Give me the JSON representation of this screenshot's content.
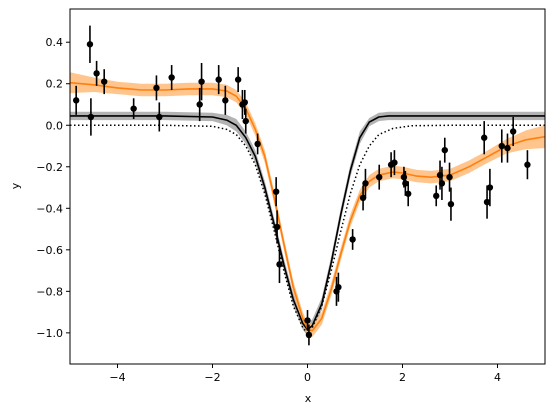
{
  "chart_data": {
    "type": "scatter",
    "title": "",
    "xlabel": "x",
    "ylabel": "y",
    "xlim": [
      -5,
      5
    ],
    "ylim": [
      -1.15,
      0.56
    ],
    "grid": false,
    "legend": "none",
    "x_ticks": [
      -4,
      -2,
      0,
      2,
      4
    ],
    "x_tick_labels": [
      "−4",
      "−2",
      "0",
      "2",
      "4"
    ],
    "y_ticks": [
      -1.0,
      -0.8,
      -0.6,
      -0.4,
      -0.2,
      0.0,
      0.2,
      0.4
    ],
    "y_tick_labels": [
      "−1.0",
      "−0.8",
      "−0.6",
      "−0.4",
      "−0.2",
      "0.0",
      "0.2",
      "0.4"
    ],
    "colors": {
      "observations": "#000000",
      "orange_mean": "#ff7f0e",
      "orange_band": "#ffbb78",
      "black_mean": "#000000",
      "black_band": "#999999"
    },
    "observations": [
      {
        "x": -4.87,
        "y": 0.12,
        "err": 0.07
      },
      {
        "x": -4.58,
        "y": 0.39,
        "err": 0.09
      },
      {
        "x": -4.56,
        "y": 0.04,
        "err": 0.09
      },
      {
        "x": -4.44,
        "y": 0.25,
        "err": 0.06
      },
      {
        "x": -4.28,
        "y": 0.21,
        "err": 0.06
      },
      {
        "x": -3.66,
        "y": 0.08,
        "err": 0.05
      },
      {
        "x": -3.18,
        "y": 0.18,
        "err": 0.06
      },
      {
        "x": -3.12,
        "y": 0.04,
        "err": 0.07
      },
      {
        "x": -2.86,
        "y": 0.23,
        "err": 0.06
      },
      {
        "x": -2.27,
        "y": 0.1,
        "err": 0.08
      },
      {
        "x": -2.23,
        "y": 0.21,
        "err": 0.09
      },
      {
        "x": -1.87,
        "y": 0.22,
        "err": 0.07
      },
      {
        "x": -1.73,
        "y": 0.12,
        "err": 0.07
      },
      {
        "x": -1.46,
        "y": 0.22,
        "err": 0.06
      },
      {
        "x": -1.37,
        "y": 0.1,
        "err": 0.07
      },
      {
        "x": -1.32,
        "y": 0.11,
        "err": 0.06
      },
      {
        "x": -1.3,
        "y": 0.02,
        "err": 0.06
      },
      {
        "x": -1.05,
        "y": -0.09,
        "err": 0.05
      },
      {
        "x": -0.66,
        "y": -0.32,
        "err": 0.07
      },
      {
        "x": -0.64,
        "y": -0.49,
        "err": 0.08
      },
      {
        "x": -0.59,
        "y": -0.67,
        "err": 0.09
      },
      {
        "x": 0.0,
        "y": -0.94,
        "err": 0.05
      },
      {
        "x": 0.03,
        "y": -1.01,
        "err": 0.05
      },
      {
        "x": 0.61,
        "y": -0.8,
        "err": 0.07
      },
      {
        "x": 0.65,
        "y": -0.78,
        "err": 0.07
      },
      {
        "x": 0.95,
        "y": -0.55,
        "err": 0.05
      },
      {
        "x": 1.17,
        "y": -0.35,
        "err": 0.06
      },
      {
        "x": 1.22,
        "y": -0.28,
        "err": 0.07
      },
      {
        "x": 1.51,
        "y": -0.25,
        "err": 0.06
      },
      {
        "x": 1.76,
        "y": -0.19,
        "err": 0.06
      },
      {
        "x": 1.83,
        "y": -0.18,
        "err": 0.06
      },
      {
        "x": 2.03,
        "y": -0.25,
        "err": 0.05
      },
      {
        "x": 2.06,
        "y": -0.28,
        "err": 0.06
      },
      {
        "x": 2.12,
        "y": -0.33,
        "err": 0.06
      },
      {
        "x": 2.71,
        "y": -0.34,
        "err": 0.05
      },
      {
        "x": 2.79,
        "y": -0.24,
        "err": 0.07
      },
      {
        "x": 2.83,
        "y": -0.28,
        "err": 0.08
      },
      {
        "x": 2.89,
        "y": -0.12,
        "err": 0.06
      },
      {
        "x": 2.99,
        "y": -0.25,
        "err": 0.07
      },
      {
        "x": 3.02,
        "y": -0.38,
        "err": 0.08
      },
      {
        "x": 3.72,
        "y": -0.06,
        "err": 0.08
      },
      {
        "x": 3.78,
        "y": -0.37,
        "err": 0.08
      },
      {
        "x": 3.84,
        "y": -0.3,
        "err": 0.09
      },
      {
        "x": 4.09,
        "y": -0.1,
        "err": 0.08
      },
      {
        "x": 4.21,
        "y": -0.11,
        "err": 0.07
      },
      {
        "x": 4.33,
        "y": -0.03,
        "err": 0.07
      },
      {
        "x": 4.63,
        "y": -0.19,
        "err": 0.07
      }
    ],
    "orange_fit": {
      "x": [
        -5.0,
        -4.5,
        -4.0,
        -3.5,
        -3.0,
        -2.5,
        -2.0,
        -1.7,
        -1.5,
        -1.3,
        -1.1,
        -0.9,
        -0.7,
        -0.5,
        -0.3,
        -0.1,
        0.0,
        0.1,
        0.3,
        0.5,
        0.7,
        0.9,
        1.1,
        1.3,
        1.5,
        1.8,
        2.0,
        2.3,
        2.6,
        3.0,
        3.4,
        3.8,
        4.2,
        4.6,
        5.0
      ],
      "y": [
        0.205,
        0.195,
        0.18,
        0.17,
        0.17,
        0.175,
        0.175,
        0.165,
        0.14,
        0.08,
        -0.02,
        -0.15,
        -0.35,
        -0.57,
        -0.78,
        -0.93,
        -0.98,
        -0.99,
        -0.93,
        -0.79,
        -0.62,
        -0.46,
        -0.34,
        -0.27,
        -0.24,
        -0.225,
        -0.23,
        -0.245,
        -0.25,
        -0.24,
        -0.2,
        -0.15,
        -0.1,
        -0.07,
        -0.055
      ],
      "lower": [
        0.155,
        0.16,
        0.15,
        0.14,
        0.14,
        0.145,
        0.145,
        0.135,
        0.11,
        0.05,
        -0.05,
        -0.18,
        -0.38,
        -0.6,
        -0.81,
        -0.96,
        -1.01,
        -1.02,
        -0.96,
        -0.82,
        -0.65,
        -0.49,
        -0.37,
        -0.3,
        -0.27,
        -0.255,
        -0.26,
        -0.275,
        -0.28,
        -0.27,
        -0.23,
        -0.18,
        -0.135,
        -0.115,
        -0.11
      ],
      "upper": [
        0.255,
        0.23,
        0.21,
        0.2,
        0.2,
        0.205,
        0.205,
        0.195,
        0.17,
        0.11,
        0.01,
        -0.12,
        -0.32,
        -0.54,
        -0.75,
        -0.9,
        -0.95,
        -0.96,
        -0.9,
        -0.76,
        -0.59,
        -0.43,
        -0.31,
        -0.24,
        -0.21,
        -0.195,
        -0.2,
        -0.215,
        -0.22,
        -0.21,
        -0.17,
        -0.12,
        -0.065,
        -0.025,
        0.0
      ]
    },
    "black_fit": {
      "x": [
        -5.0,
        -3.0,
        -2.0,
        -1.7,
        -1.5,
        -1.3,
        -1.1,
        -0.9,
        -0.7,
        -0.5,
        -0.3,
        -0.1,
        0.0,
        0.1,
        0.3,
        0.5,
        0.7,
        0.9,
        1.1,
        1.3,
        1.5,
        1.7,
        2.0,
        2.5,
        3.0,
        4.0,
        5.0
      ],
      "y": [
        0.045,
        0.045,
        0.04,
        0.025,
        0.0,
        -0.06,
        -0.15,
        -0.3,
        -0.48,
        -0.67,
        -0.84,
        -0.955,
        -0.985,
        -0.965,
        -0.86,
        -0.66,
        -0.43,
        -0.22,
        -0.06,
        0.015,
        0.04,
        0.045,
        0.045,
        0.045,
        0.045,
        0.045,
        0.045
      ],
      "lower": [
        0.025,
        0.025,
        0.02,
        0.0,
        -0.03,
        -0.09,
        -0.18,
        -0.33,
        -0.51,
        -0.7,
        -0.87,
        -0.985,
        -1.015,
        -0.995,
        -0.89,
        -0.69,
        -0.46,
        -0.25,
        -0.09,
        -0.005,
        0.02,
        0.025,
        0.025,
        0.025,
        0.025,
        0.025,
        0.025
      ],
      "upper": [
        0.065,
        0.065,
        0.06,
        0.05,
        0.03,
        -0.03,
        -0.12,
        -0.27,
        -0.45,
        -0.64,
        -0.81,
        -0.925,
        -0.955,
        -0.935,
        -0.83,
        -0.63,
        -0.4,
        -0.19,
        -0.03,
        0.035,
        0.06,
        0.065,
        0.065,
        0.065,
        0.065,
        0.065,
        0.065
      ]
    },
    "truth_dotted": {
      "x": [
        -5.0,
        -3.0,
        -2.0,
        -1.7,
        -1.5,
        -1.3,
        -1.1,
        -0.9,
        -0.7,
        -0.5,
        -0.3,
        -0.1,
        0.0,
        0.1,
        0.3,
        0.5,
        0.7,
        0.9,
        1.1,
        1.3,
        1.5,
        1.8,
        2.2,
        3.0,
        5.0
      ],
      "y": [
        0.0,
        0.0,
        -0.005,
        -0.02,
        -0.045,
        -0.1,
        -0.19,
        -0.33,
        -0.51,
        -0.7,
        -0.87,
        -0.975,
        -1.0,
        -0.975,
        -0.87,
        -0.7,
        -0.51,
        -0.33,
        -0.19,
        -0.1,
        -0.045,
        -0.015,
        -0.002,
        0.0,
        0.0
      ]
    }
  }
}
